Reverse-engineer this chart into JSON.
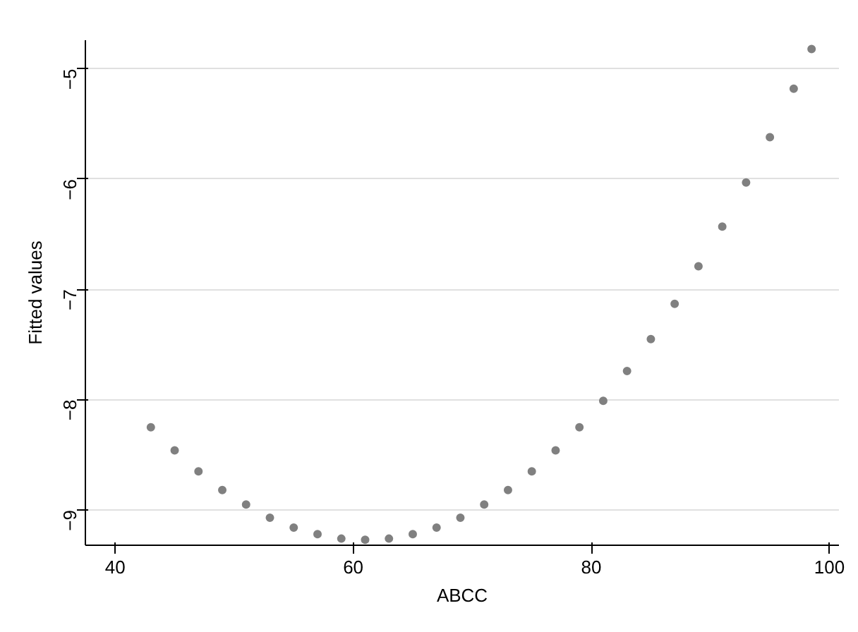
{
  "chart_data": {
    "type": "scatter",
    "xlabel": "ABCC",
    "ylabel": "Fitted values",
    "x": [
      43,
      45,
      47,
      49,
      51,
      53,
      55,
      57,
      59,
      61,
      63,
      65,
      67,
      69,
      71,
      73,
      75,
      77,
      79,
      81,
      83,
      85,
      87,
      89,
      91,
      93,
      95,
      97,
      98.5
    ],
    "series": [
      {
        "color": "#808080",
        "values": [
          -8.25,
          -8.46,
          -8.65,
          -8.82,
          -8.95,
          -9.07,
          -9.16,
          -9.22,
          -9.26,
          -9.27,
          -9.26,
          -9.22,
          -9.16,
          -9.07,
          -8.95,
          -8.82,
          -8.65,
          -8.46,
          -8.25,
          -8.01,
          -7.74,
          -7.45,
          -7.13,
          -6.79,
          -6.43,
          -6.03,
          -5.62,
          -5.18,
          -4.82
        ]
      }
    ],
    "xlim": [
      37.5,
      100.8
    ],
    "ylim": [
      -9.32,
      -4.74
    ],
    "xticks": [
      40,
      60,
      80,
      100
    ],
    "yticks": [
      -9,
      -8,
      -7,
      -6,
      -5
    ],
    "grid": "y",
    "marker": "circle"
  }
}
